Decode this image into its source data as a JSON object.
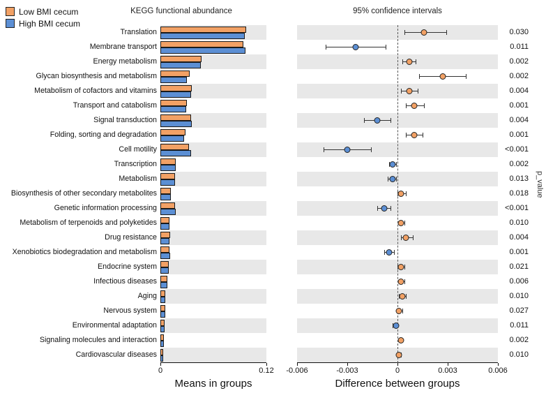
{
  "chart_data": {
    "type": "bar",
    "left_title": "KEGG functional abundance",
    "right_title": "95% confidence intervals",
    "p_label": "p_value",
    "colors": {
      "low": "#F2A165",
      "high": "#5C8FD4",
      "stripe": "#e8e8e8"
    },
    "legend": [
      {
        "name": "Low BMI cecum",
        "key": "low",
        "color": "#F2A165"
      },
      {
        "name": "High BMI cecum",
        "key": "high",
        "color": "#5C8FD4"
      }
    ],
    "left_axis": {
      "label": "Means in groups",
      "min": 0,
      "max": 0.12,
      "ticks": [
        {
          "value": 0,
          "label": "0"
        },
        {
          "value": 0.12,
          "label": "0.12"
        }
      ]
    },
    "right_axis": {
      "label": "Difference between groups",
      "min": -0.006,
      "max": 0.006,
      "ticks": [
        {
          "value": -0.006,
          "label": "-0.006"
        },
        {
          "value": -0.003,
          "label": "-0.003"
        },
        {
          "value": 0,
          "label": "0"
        },
        {
          "value": 0.003,
          "label": "0.003"
        },
        {
          "value": 0.006,
          "label": "0.006"
        }
      ]
    },
    "rows": [
      {
        "label": "Translation",
        "low": 0.0955,
        "high": 0.0939,
        "diff": 0.0016,
        "ci_lo": 0.0004,
        "ci_hi": 0.0029,
        "higher": "low",
        "p": "0.030"
      },
      {
        "label": "Membrane transport",
        "low": 0.092,
        "high": 0.0945,
        "diff": -0.0025,
        "ci_lo": -0.0043,
        "ci_hi": -0.0007,
        "higher": "high",
        "p": "0.011"
      },
      {
        "label": "Energy metabolism",
        "low": 0.0448,
        "high": 0.0441,
        "diff": 0.0007,
        "ci_lo": 0.0003,
        "ci_hi": 0.0011,
        "higher": "low",
        "p": "0.002"
      },
      {
        "label": "Glycan biosynthesis and metabolism",
        "low": 0.0315,
        "high": 0.0288,
        "diff": 0.0027,
        "ci_lo": 0.0013,
        "ci_hi": 0.0041,
        "higher": "low",
        "p": "0.002"
      },
      {
        "label": "Metabolism of cofactors and vitamins",
        "low": 0.034,
        "high": 0.0333,
        "diff": 0.0007,
        "ci_lo": 0.0002,
        "ci_hi": 0.0012,
        "higher": "low",
        "p": "0.004"
      },
      {
        "label": "Transport and catabolism",
        "low": 0.0285,
        "high": 0.0275,
        "diff": 0.001,
        "ci_lo": 0.0005,
        "ci_hi": 0.0016,
        "higher": "low",
        "p": "0.001"
      },
      {
        "label": "Signal transduction",
        "low": 0.033,
        "high": 0.0342,
        "diff": -0.0012,
        "ci_lo": -0.002,
        "ci_hi": -0.0004,
        "higher": "high",
        "p": "0.004"
      },
      {
        "label": "Folding, sorting and degradation",
        "low": 0.0265,
        "high": 0.0255,
        "diff": 0.001,
        "ci_lo": 0.0005,
        "ci_hi": 0.0015,
        "higher": "low",
        "p": "0.001"
      },
      {
        "label": "Cell motility",
        "low": 0.0305,
        "high": 0.0335,
        "diff": -0.003,
        "ci_lo": -0.0044,
        "ci_hi": -0.0016,
        "higher": "high",
        "p": "<0.001"
      },
      {
        "label": "Transcription",
        "low": 0.0158,
        "high": 0.0161,
        "diff": -0.0003,
        "ci_lo": -0.0005,
        "ci_hi": -0.0001,
        "higher": "high",
        "p": "0.002"
      },
      {
        "label": "Metabolism",
        "low": 0.0148,
        "high": 0.0151,
        "diff": -0.0003,
        "ci_lo": -0.0006,
        "ci_hi": -0.0001,
        "higher": "high",
        "p": "0.013"
      },
      {
        "label": "Biosynthesis of other secondary metabolites",
        "low": 0.0102,
        "high": 0.01,
        "diff": 0.0002,
        "ci_lo": 0.0,
        "ci_hi": 0.0005,
        "higher": "low",
        "p": "0.018"
      },
      {
        "label": "Genetic information processing",
        "low": 0.0152,
        "high": 0.016,
        "diff": -0.0008,
        "ci_lo": -0.0012,
        "ci_hi": -0.0004,
        "higher": "high",
        "p": "<0.001"
      },
      {
        "label": "Metabolism of terpenoids and polyketides",
        "low": 0.009,
        "high": 0.0088,
        "diff": 0.0002,
        "ci_lo": 0.0001,
        "ci_hi": 0.0004,
        "higher": "low",
        "p": "0.010"
      },
      {
        "label": "Drug resistance",
        "low": 0.0092,
        "high": 0.0087,
        "diff": 0.0005,
        "ci_lo": 0.0002,
        "ci_hi": 0.0009,
        "higher": "low",
        "p": "0.004"
      },
      {
        "label": "Xenobiotics biodegradation and metabolism",
        "low": 0.0086,
        "high": 0.0091,
        "diff": -0.0005,
        "ci_lo": -0.0008,
        "ci_hi": -0.0002,
        "higher": "high",
        "p": "0.001"
      },
      {
        "label": "Endocrine system",
        "low": 0.0078,
        "high": 0.0076,
        "diff": 0.0002,
        "ci_lo": 0.0,
        "ci_hi": 0.0004,
        "higher": "low",
        "p": "0.021"
      },
      {
        "label": "Infectious diseases",
        "low": 0.0062,
        "high": 0.006,
        "diff": 0.0002,
        "ci_lo": 0.0001,
        "ci_hi": 0.0004,
        "higher": "low",
        "p": "0.006"
      },
      {
        "label": "Aging",
        "low": 0.0042,
        "high": 0.0039,
        "diff": 0.0003,
        "ci_lo": 0.0001,
        "ci_hi": 0.0005,
        "higher": "low",
        "p": "0.010"
      },
      {
        "label": "Nervous system",
        "low": 0.0038,
        "high": 0.0037,
        "diff": 0.0001,
        "ci_lo": 0.0,
        "ci_hi": 0.0003,
        "higher": "low",
        "p": "0.027"
      },
      {
        "label": "Environmental adaptation",
        "low": 0.0028,
        "high": 0.0029,
        "diff": -0.0001,
        "ci_lo": -0.0003,
        "ci_hi": 0.0,
        "higher": "high",
        "p": "0.011"
      },
      {
        "label": "Signaling molecules and interaction",
        "low": 0.0022,
        "high": 0.002,
        "diff": 0.0002,
        "ci_lo": 0.0001,
        "ci_hi": 0.0003,
        "higher": "low",
        "p": "0.002"
      },
      {
        "label": "Cardiovascular diseases",
        "low": 0.0018,
        "high": 0.0017,
        "diff": 0.0001,
        "ci_lo": 0.0,
        "ci_hi": 0.0002,
        "higher": "low",
        "p": "0.010"
      }
    ]
  }
}
